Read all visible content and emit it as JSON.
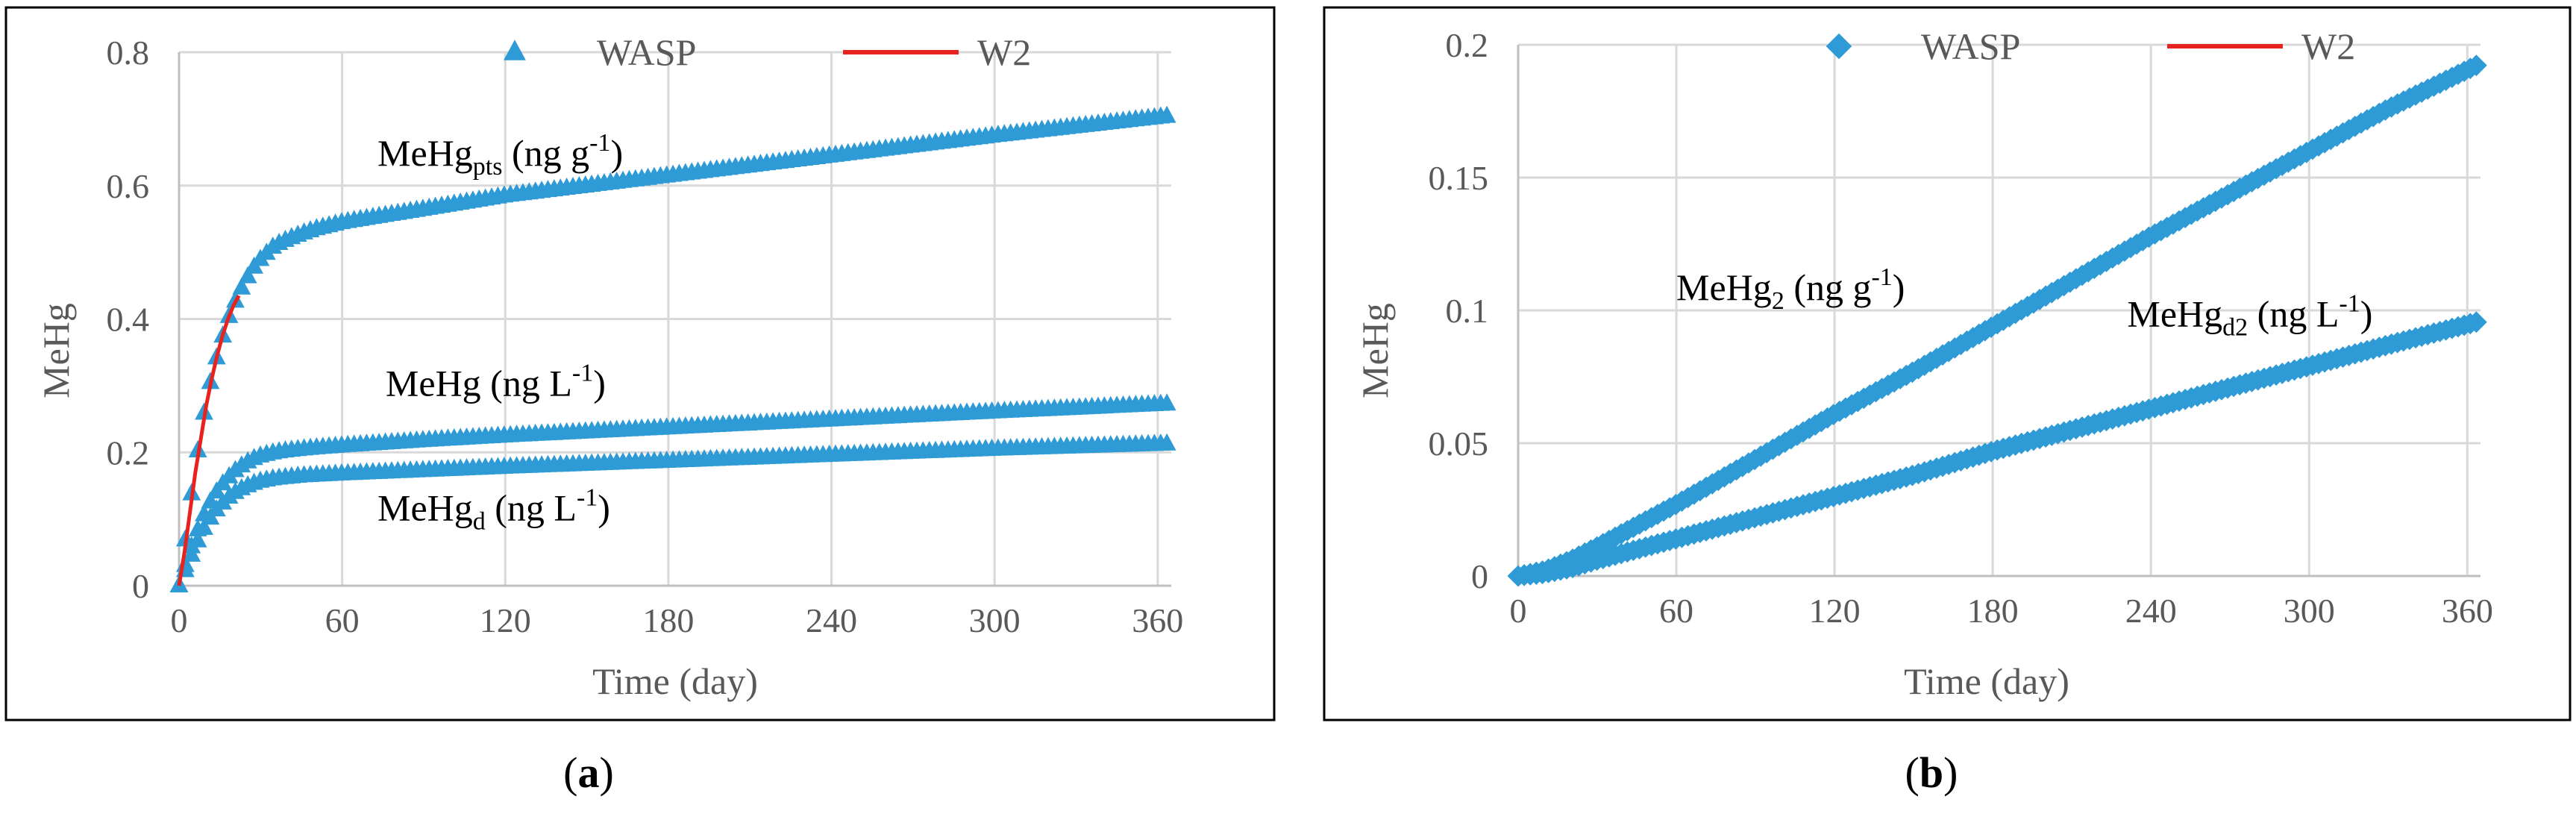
{
  "chart_data": [
    {
      "type": "scatter",
      "panel_label": "a",
      "xlabel": "Time (day)",
      "ylabel": "MeHg",
      "xlim": [
        0,
        365
      ],
      "ylim": [
        0,
        0.8
      ],
      "xticks": [
        0,
        60,
        120,
        180,
        240,
        300,
        360
      ],
      "yticks": [
        0,
        0.2,
        0.4,
        0.6,
        0.8
      ],
      "ytick_labels": [
        "0",
        "0.2",
        "0.4",
        "0.6",
        "0.8"
      ],
      "grid": true,
      "legend": {
        "placement": "top",
        "entries": [
          {
            "name": "WASP",
            "marker": "triangle",
            "color": "#2e9bd6"
          },
          {
            "name": "W2",
            "marker": "line",
            "color": "#e8231f"
          }
        ]
      },
      "series": [
        {
          "name": "WASP",
          "curve": "MeHgpts",
          "x": [
            0,
            3,
            6,
            9,
            12,
            15,
            18,
            21,
            24,
            27,
            30,
            35,
            40,
            45,
            50,
            60,
            90,
            120,
            180,
            240,
            300,
            365
          ],
          "y": [
            0,
            0.09,
            0.18,
            0.255,
            0.315,
            0.36,
            0.4,
            0.43,
            0.455,
            0.475,
            0.49,
            0.51,
            0.52,
            0.528,
            0.535,
            0.545,
            0.565,
            0.585,
            0.615,
            0.645,
            0.675,
            0.705
          ]
        },
        {
          "name": "WASP",
          "curve": "MeHg",
          "x": [
            0,
            3,
            6,
            9,
            12,
            15,
            18,
            21,
            24,
            27,
            30,
            35,
            40,
            45,
            50,
            60,
            90,
            120,
            180,
            240,
            300,
            365
          ],
          "y": [
            0,
            0.04,
            0.075,
            0.105,
            0.13,
            0.148,
            0.162,
            0.174,
            0.183,
            0.19,
            0.195,
            0.2,
            0.203,
            0.205,
            0.207,
            0.21,
            0.218,
            0.225,
            0.237,
            0.249,
            0.261,
            0.273
          ]
        },
        {
          "name": "WASP",
          "curve": "MeHgd",
          "x": [
            0,
            3,
            6,
            9,
            12,
            15,
            18,
            21,
            24,
            27,
            30,
            35,
            40,
            45,
            50,
            60,
            90,
            120,
            180,
            240,
            300,
            365
          ],
          "y": [
            0,
            0.03,
            0.06,
            0.085,
            0.105,
            0.12,
            0.132,
            0.141,
            0.148,
            0.153,
            0.157,
            0.161,
            0.163,
            0.165,
            0.166,
            0.168,
            0.173,
            0.178,
            0.187,
            0.196,
            0.205,
            0.213
          ]
        },
        {
          "name": "W2",
          "curve": "MeHgpts",
          "x": [
            0,
            2,
            4,
            6,
            8,
            10,
            12,
            14,
            16,
            18,
            20,
            22
          ],
          "y": [
            0,
            0.05,
            0.11,
            0.17,
            0.22,
            0.27,
            0.31,
            0.345,
            0.375,
            0.4,
            0.42,
            0.435
          ]
        }
      ],
      "annotations": [
        {
          "base": "MeHg",
          "sub": "pts",
          "tail": " (ng g",
          "sup": "-1",
          "end": ")",
          "x": 73,
          "y": 0.63
        },
        {
          "base": "MeHg (ng L",
          "sub": "",
          "tail": "",
          "sup": "-1",
          "end": ")",
          "x": 76,
          "y": 0.285
        },
        {
          "base": "MeHg",
          "sub": "d",
          "tail": " (ng L",
          "sup": "-1",
          "end": ")",
          "x": 73,
          "y": 0.098
        }
      ]
    },
    {
      "type": "scatter",
      "panel_label": "b",
      "xlabel": "Time (day)",
      "ylabel": "MeHg",
      "xlim": [
        0,
        365
      ],
      "ylim": [
        0,
        0.2
      ],
      "xticks": [
        0,
        60,
        120,
        180,
        240,
        300,
        360
      ],
      "yticks": [
        0,
        0.05,
        0.1,
        0.15,
        0.2
      ],
      "ytick_labels": [
        "0",
        "0.05",
        "0.1",
        "0.15",
        "0.2"
      ],
      "grid": true,
      "legend": {
        "placement": "top",
        "entries": [
          {
            "name": "WASP",
            "marker": "diamond",
            "color": "#2e9bd6"
          },
          {
            "name": "W2",
            "marker": "line",
            "color": "#e8231f"
          }
        ]
      },
      "series": [
        {
          "name": "WASP",
          "curve": "MeHg2",
          "x": [
            0,
            10,
            20,
            30,
            60,
            90,
            120,
            150,
            180,
            210,
            240,
            270,
            300,
            330,
            365
          ],
          "y": [
            0,
            0.002,
            0.006,
            0.011,
            0.027,
            0.044,
            0.061,
            0.077,
            0.094,
            0.111,
            0.128,
            0.144,
            0.16,
            0.176,
            0.193
          ]
        },
        {
          "name": "WASP",
          "curve": "MeHgd2",
          "x": [
            0,
            10,
            20,
            30,
            60,
            90,
            120,
            150,
            180,
            210,
            240,
            270,
            300,
            330,
            365
          ],
          "y": [
            0,
            0.001,
            0.003,
            0.006,
            0.014,
            0.022,
            0.03,
            0.038,
            0.047,
            0.055,
            0.063,
            0.071,
            0.079,
            0.087,
            0.096
          ]
        }
      ],
      "annotations": [
        {
          "base": "MeHg",
          "sub": "2",
          "tail": " (ng g",
          "sup": "-1",
          "end": ")",
          "x": 60,
          "y": 0.104
        },
        {
          "base": "MeHg",
          "sub": "d2",
          "tail": " (ng L",
          "sup": "-1",
          "end": ")",
          "x": 231,
          "y": 0.094
        }
      ]
    }
  ]
}
